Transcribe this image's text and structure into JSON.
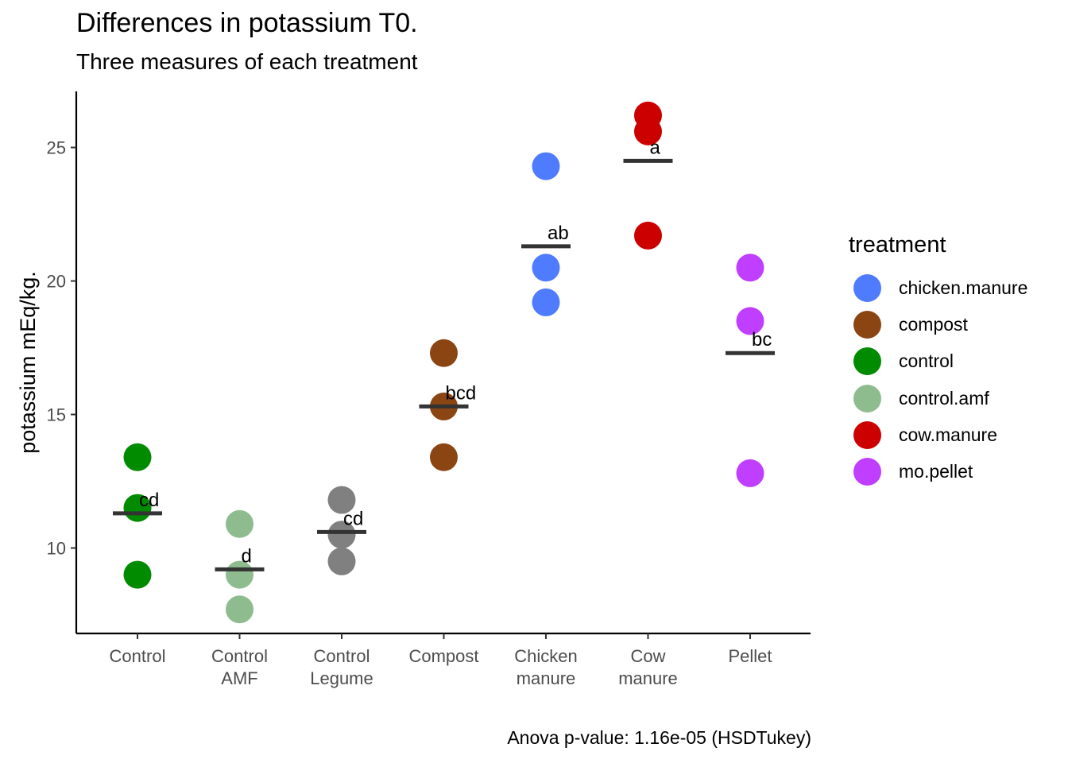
{
  "chart_data": {
    "type": "scatter",
    "title": "Differences in potassium T0.",
    "subtitle": "Three measures of each treatment",
    "caption": "Anova p-value: 1.16e-05 (HSDTukey)",
    "xlabel": "",
    "ylabel": "potassium mEq/kg.",
    "ylim": [
      6.8,
      27.1
    ],
    "yticks": [
      10,
      15,
      20,
      25
    ],
    "categories": [
      {
        "label": [
          "Control"
        ],
        "treatment": "control",
        "values": [
          13.4,
          11.5,
          9.0
        ],
        "mean": 11.3,
        "letter": "cd"
      },
      {
        "label": [
          "Control",
          "AMF"
        ],
        "treatment": "control.amf",
        "values": [
          10.9,
          9.0,
          7.7
        ],
        "mean": 9.2,
        "letter": "d"
      },
      {
        "label": [
          "Control",
          "Legume"
        ],
        "treatment": "control.legume",
        "values": [
          11.8,
          10.5,
          9.5
        ],
        "mean": 10.6,
        "letter": "cd"
      },
      {
        "label": [
          "Compost"
        ],
        "treatment": "compost",
        "values": [
          17.3,
          15.3,
          13.4
        ],
        "mean": 15.3,
        "letter": "bcd"
      },
      {
        "label": [
          "Chicken",
          "manure"
        ],
        "treatment": "chicken.manure",
        "values": [
          24.3,
          20.5,
          19.2
        ],
        "mean": 21.3,
        "letter": "ab"
      },
      {
        "label": [
          "Cow",
          "manure"
        ],
        "treatment": "cow.manure",
        "values": [
          26.2,
          25.6,
          21.7
        ],
        "mean": 24.5,
        "letter": "a"
      },
      {
        "label": [
          "Pellet"
        ],
        "treatment": "mo.pellet",
        "values": [
          20.5,
          18.5,
          12.8
        ],
        "mean": 17.3,
        "letter": "bc"
      }
    ],
    "colors": {
      "chicken.manure": "#4f7cff",
      "compost": "#8b4513",
      "control": "#008b00",
      "control.amf": "#8fbc8f",
      "control.legume": "#808080",
      "cow.manure": "#cd0000",
      "mo.pellet": "#bf3eff"
    },
    "legend": {
      "title": "treatment",
      "position": "right",
      "items": [
        "chicken.manure",
        "compost",
        "control",
        "control.amf",
        "cow.manure",
        "mo.pellet"
      ]
    }
  }
}
